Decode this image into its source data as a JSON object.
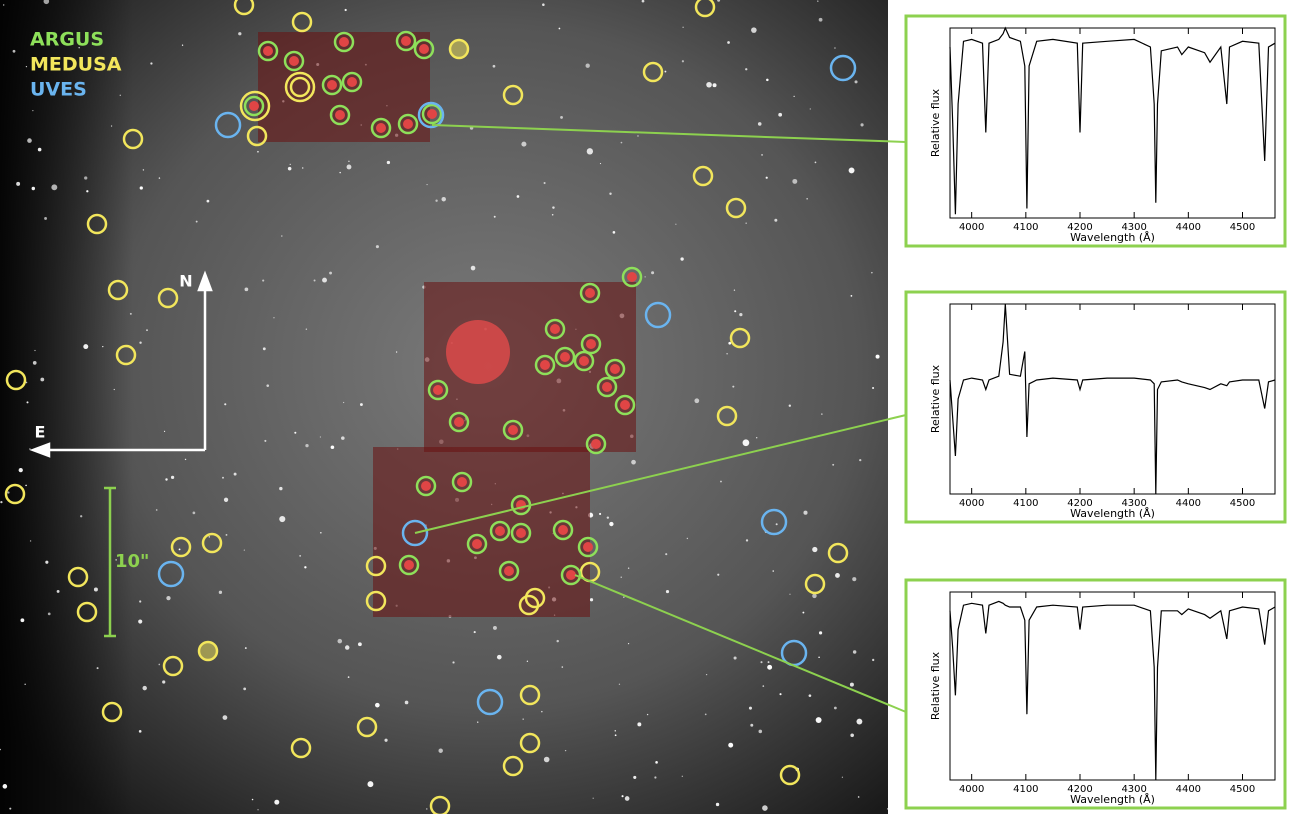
{
  "image": {
    "legend": [
      {
        "label": "ARGUS",
        "color": "#8ee05a"
      },
      {
        "label": "MEDUSA",
        "color": "#f2e65c"
      },
      {
        "label": "UVES",
        "color": "#6ab4ef"
      }
    ],
    "compass": {
      "north": "N",
      "east": "E"
    },
    "scale_bar": "10\""
  },
  "chart_data": [
    {
      "type": "line",
      "x_label": "Wavelength (Å)",
      "y_label": "Relative flux",
      "xlim": [
        3960,
        4560
      ],
      "xticks": [
        4000,
        4100,
        4200,
        4300,
        4400,
        4500
      ],
      "ylim": [
        0,
        1
      ],
      "x": [
        3960,
        3965,
        3970,
        3975,
        3985,
        4000,
        4020,
        4026,
        4032,
        4050,
        4058,
        4062,
        4070,
        4090,
        4098,
        4102,
        4106,
        4120,
        4150,
        4195,
        4200,
        4205,
        4250,
        4300,
        4330,
        4337,
        4340,
        4343,
        4350,
        4380,
        4388,
        4400,
        4430,
        4440,
        4460,
        4471,
        4476,
        4500,
        4530,
        4541,
        4548,
        4560
      ],
      "series": [
        {
          "color": "#000000",
          "values": [
            0.9,
            0.5,
            0.02,
            0.6,
            0.93,
            0.94,
            0.92,
            0.45,
            0.92,
            0.94,
            0.97,
            1.0,
            0.95,
            0.93,
            0.8,
            0.05,
            0.8,
            0.93,
            0.94,
            0.92,
            0.45,
            0.92,
            0.93,
            0.94,
            0.9,
            0.6,
            0.08,
            0.6,
            0.88,
            0.9,
            0.86,
            0.9,
            0.87,
            0.82,
            0.9,
            0.6,
            0.9,
            0.93,
            0.92,
            0.3,
            0.9,
            0.92
          ]
        }
      ]
    },
    {
      "type": "line",
      "x_label": "Wavelength (Å)",
      "y_label": "Relative flux",
      "xlim": [
        3960,
        4560
      ],
      "xticks": [
        4000,
        4100,
        4200,
        4300,
        4400,
        4500
      ],
      "ylim": [
        0,
        1
      ],
      "x": [
        3960,
        3965,
        3970,
        3975,
        3985,
        4000,
        4020,
        4026,
        4032,
        4050,
        4058,
        4062,
        4070,
        4090,
        4098,
        4102,
        4106,
        4120,
        4150,
        4195,
        4200,
        4205,
        4250,
        4300,
        4330,
        4337,
        4340,
        4343,
        4350,
        4380,
        4388,
        4400,
        4430,
        4440,
        4460,
        4471,
        4476,
        4500,
        4530,
        4541,
        4548,
        4560
      ],
      "series": [
        {
          "color": "#000000",
          "values": [
            0.6,
            0.4,
            0.2,
            0.5,
            0.6,
            0.61,
            0.6,
            0.55,
            0.6,
            0.62,
            0.8,
            1.0,
            0.63,
            0.62,
            0.75,
            0.3,
            0.58,
            0.6,
            0.61,
            0.6,
            0.55,
            0.6,
            0.61,
            0.61,
            0.6,
            0.58,
            0.0,
            0.55,
            0.59,
            0.6,
            0.59,
            0.58,
            0.56,
            0.55,
            0.58,
            0.57,
            0.59,
            0.6,
            0.6,
            0.45,
            0.59,
            0.6
          ]
        }
      ]
    },
    {
      "type": "line",
      "x_label": "Wavelength (Å)",
      "y_label": "Relative flux",
      "xlim": [
        3960,
        4560
      ],
      "xticks": [
        4000,
        4100,
        4200,
        4300,
        4400,
        4500
      ],
      "ylim": [
        0,
        1
      ],
      "x": [
        3960,
        3965,
        3970,
        3975,
        3985,
        4000,
        4020,
        4026,
        4032,
        4050,
        4058,
        4062,
        4070,
        4090,
        4098,
        4102,
        4106,
        4120,
        4150,
        4195,
        4200,
        4205,
        4250,
        4300,
        4330,
        4337,
        4340,
        4343,
        4350,
        4380,
        4388,
        4400,
        4430,
        4440,
        4460,
        4471,
        4476,
        4500,
        4530,
        4541,
        4548,
        4560
      ],
      "series": [
        {
          "color": "#000000",
          "values": [
            0.9,
            0.7,
            0.45,
            0.8,
            0.93,
            0.94,
            0.93,
            0.78,
            0.93,
            0.95,
            0.94,
            0.93,
            0.92,
            0.92,
            0.85,
            0.35,
            0.85,
            0.92,
            0.93,
            0.92,
            0.8,
            0.92,
            0.93,
            0.93,
            0.9,
            0.6,
            0.0,
            0.6,
            0.9,
            0.9,
            0.88,
            0.91,
            0.88,
            0.86,
            0.9,
            0.75,
            0.9,
            0.92,
            0.91,
            0.72,
            0.9,
            0.92
          ]
        }
      ]
    }
  ]
}
